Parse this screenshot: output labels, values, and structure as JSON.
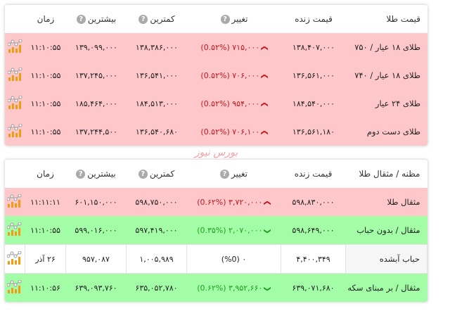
{
  "watermark": "بورس نیوز",
  "colors": {
    "down": "#c4161c",
    "up": "#1f9e1f",
    "red_row": "#fec8cb",
    "green_row": "#a2fda6"
  },
  "gold": {
    "headers": {
      "name": "قیمت طلا",
      "live": "قیمت زنده",
      "change": "تغییر",
      "low": "کمترین",
      "high": "بیشترین",
      "time": "زمان"
    },
    "rows": [
      {
        "name": "طلای ۱۸ عیار / ۷۵۰",
        "live": "۱۳۸,۴۰۷,۰۰۰",
        "change": "۷۱۵,۰۰۰ (0.۵۲%)",
        "dir": "down",
        "low": "۱۳۸,۳۸۶,۰۰۰",
        "high": "۱۳۹,۰۹۹,۰۰۰",
        "time": "۱۱:۱۰:۵۵",
        "status": "red"
      },
      {
        "name": "طلای ۱۸ عیار / ۷۴۰",
        "live": "۱۳۶,۵۶۱,۰۰۰",
        "change": "۷۰۶,۰۰۰ (0.۵۲%)",
        "dir": "down",
        "low": "۱۳۶,۵۴۱,۰۰۰",
        "high": "۱۳۷,۲۴۵,۰۰۰",
        "time": "۱۱:۱۰:۵۵",
        "status": "red"
      },
      {
        "name": "طلای ۲۴ عیار",
        "live": "۱۸۴,۵۴۰,۰۰۰",
        "change": "۹۵۴,۰۰۰ (0.۵۲%)",
        "dir": "down",
        "low": "۱۸۴,۵۱۳,۰۰۰",
        "high": "۱۸۵,۴۶۴,۰۰۰",
        "time": "۱۱:۱۰:۵۵",
        "status": "red"
      },
      {
        "name": "طلای دست دوم",
        "live": "۱۳۶,۵۶۱,۱۸۰",
        "change": "۷۰۶,۱۰۰ (0.۵۲%)",
        "dir": "down",
        "low": "۱۳۶,۵۴۰,۶۸۰",
        "high": "۱۳۷,۲۴۴,۵۰۰",
        "time": "۱۱:۱۰:۵۵",
        "status": "red"
      }
    ]
  },
  "mesghal": {
    "headers": {
      "name": "مظنه / مثقال طلا",
      "live": "قیمت زنده",
      "change": "تغییر",
      "low": "کمترین",
      "high": "بیشترین",
      "time": "زمان"
    },
    "rows": [
      {
        "name": "مثقال طلا",
        "live": "۵۹۸,۸۳۰,۰۰۰",
        "change": "۳,۷۲۰,۰۰۰ (0.۶۲%)",
        "dir": "down",
        "low": "۵۹۸,۷۵۰,۰۰۰",
        "high": "۶۰۱,۱۵۰,۰۰۰",
        "time": "۱۱:۱۱:۱۱",
        "status": "red"
      },
      {
        "name": "مثقال / بدون حباب",
        "live": "۵۹۸,۶۴۹,۰۰۰",
        "change": "۲,۰۷۰,۰۰۰ (0.۳۵%)",
        "dir": "up",
        "low": "۵۹۷,۴۱۹,۰۰۰",
        "high": "۵۹۹,۰۱۶,۰۰۰",
        "time": "۱۱:۱۰:۵۵",
        "status": "green"
      },
      {
        "name": "حباب آبشده",
        "live": "۴,۴۰۰,۳۴۹",
        "change": "۰ (%0)",
        "dir": "none",
        "low": "۱,۰۰۵,۹۸۹",
        "high": "۹۵۷,۰۸۷",
        "time": "۲۶ آذر",
        "status": "white"
      },
      {
        "name": "مثقال / بر مبنای سکه",
        "live": "۶۳۹,۰۷۱,۶۸۰",
        "change": "۳,۹۵۲,۶۶۰ (0.۶۲%)",
        "dir": "up",
        "low": "۶۳۵,۰۵۲,۷۸۰",
        "high": "۶۳۹,۰۹۳,۷۶۰",
        "time": "۱۱:۱۰:۵۶",
        "status": "green"
      }
    ]
  }
}
